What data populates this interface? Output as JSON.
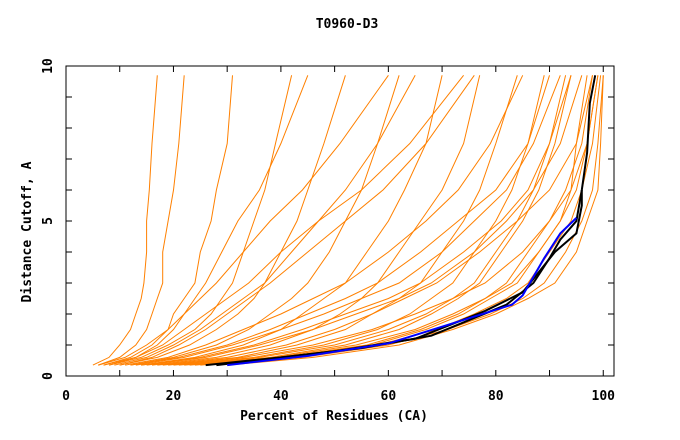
{
  "chart_data": {
    "type": "line",
    "title": "T0960-D3",
    "xlabel": "Percent of Residues (CA)",
    "ylabel": "Distance Cutoff, A",
    "xlim": [
      0,
      102
    ],
    "ylim": [
      0,
      10
    ],
    "xticks": [
      0,
      20,
      40,
      60,
      80,
      100
    ],
    "yticks": [
      0,
      5,
      10
    ],
    "xtick_labels": [
      "0",
      "20",
      "40",
      "60",
      "80",
      "100"
    ],
    "ytick_labels": [
      "0",
      "5",
      "10"
    ],
    "grid": false,
    "colors": {
      "other_models": "#ff8000",
      "highlight_black": "#000000",
      "highlight_blue": "#0000ff"
    },
    "orange_y_levels": [
      0.35,
      0.6,
      1,
      1.5,
      2,
      2.5,
      3,
      4,
      5,
      6,
      7.5,
      9.7
    ],
    "orange_series_x": [
      [
        5,
        8,
        10,
        12,
        13,
        14,
        14.5,
        15,
        15,
        15.5,
        16,
        17
      ],
      [
        6,
        10,
        13,
        15,
        16,
        17,
        18,
        18,
        19,
        20,
        21,
        22
      ],
      [
        7,
        12,
        16,
        19,
        20,
        22,
        24,
        25,
        27,
        28,
        30,
        31
      ],
      [
        8,
        14,
        19,
        24,
        27,
        29,
        31,
        33,
        35,
        37,
        39,
        42
      ],
      [
        10,
        17,
        23,
        28,
        32,
        35,
        37,
        40,
        43,
        45,
        48,
        52
      ],
      [
        12,
        20,
        28,
        34,
        38,
        42,
        45,
        49,
        52,
        55,
        58,
        62
      ],
      [
        14,
        24,
        33,
        40,
        44,
        48,
        52,
        56,
        60,
        63,
        67,
        70
      ],
      [
        16,
        28,
        38,
        46,
        51,
        55,
        58,
        62,
        66,
        70,
        74,
        77
      ],
      [
        18,
        32,
        43,
        52,
        57,
        62,
        66,
        70,
        74,
        77,
        80,
        84
      ],
      [
        20,
        35,
        48,
        58,
        64,
        68,
        72,
        76,
        80,
        83,
        86,
        89
      ],
      [
        22,
        38,
        52,
        62,
        68,
        73,
        77,
        81,
        85,
        88,
        91,
        94
      ],
      [
        24,
        40,
        56,
        66,
        73,
        78,
        82,
        86,
        90,
        93,
        96,
        98
      ],
      [
        26,
        42,
        58,
        69,
        76,
        82,
        86,
        90,
        94,
        96,
        98,
        99.5
      ],
      [
        28,
        44,
        60,
        71,
        79,
        85,
        89,
        93,
        96,
        98,
        99,
        100
      ],
      [
        30,
        46,
        62,
        72,
        80,
        86,
        91,
        95,
        97,
        99,
        99.5,
        100
      ],
      [
        9,
        15,
        20,
        25,
        29,
        33,
        37,
        42,
        47,
        52,
        58,
        65
      ],
      [
        11,
        19,
        26,
        33,
        40,
        46,
        52,
        60,
        67,
        73,
        79,
        85
      ],
      [
        13,
        22,
        31,
        40,
        48,
        55,
        62,
        70,
        76,
        82,
        87,
        92
      ],
      [
        15,
        26,
        36,
        46,
        54,
        62,
        68,
        76,
        82,
        87,
        92,
        96
      ],
      [
        6,
        11,
        15,
        19,
        22,
        25,
        28,
        33,
        38,
        44,
        51,
        60
      ],
      [
        7,
        13,
        18,
        22,
        26,
        30,
        34,
        40,
        47,
        55,
        64,
        74
      ],
      [
        19,
        33,
        46,
        57,
        65,
        72,
        78,
        85,
        90,
        94,
        97,
        99
      ],
      [
        23,
        39,
        54,
        65,
        72,
        78,
        83,
        88,
        92,
        95,
        97,
        99
      ],
      [
        17,
        30,
        41,
        50,
        57,
        63,
        69,
        77,
        84,
        90,
        95,
        98
      ],
      [
        8,
        13,
        17,
        20,
        22,
        24,
        26,
        29,
        32,
        36,
        40,
        45
      ],
      [
        10,
        16,
        21,
        26,
        30,
        34,
        38,
        45,
        52,
        59,
        67,
        76
      ],
      [
        21,
        36,
        50,
        60,
        67,
        72,
        76,
        80,
        84,
        87,
        90,
        93
      ],
      [
        25,
        41,
        57,
        67,
        74,
        79,
        84,
        88,
        92,
        94,
        95,
        97
      ],
      [
        12,
        21,
        30,
        38,
        45,
        52,
        58,
        66,
        73,
        80,
        86,
        90
      ],
      [
        14,
        25,
        35,
        44,
        52,
        60,
        66,
        74,
        81,
        86,
        90,
        94
      ]
    ],
    "highlight_series": [
      {
        "name": "black-1",
        "color": "#000000",
        "points": [
          [
            26,
            0.35
          ],
          [
            40,
            0.6
          ],
          [
            55,
            0.9
          ],
          [
            68,
            1.3
          ],
          [
            75,
            1.8
          ],
          [
            82,
            2.3
          ],
          [
            87,
            3
          ],
          [
            90,
            3.8
          ],
          [
            92,
            4.4
          ],
          [
            95,
            5
          ],
          [
            96,
            6
          ],
          [
            97,
            7.2
          ],
          [
            97.5,
            8.8
          ],
          [
            98.5,
            9.7
          ]
        ]
      },
      {
        "name": "black-2",
        "color": "#000000",
        "points": [
          [
            28,
            0.35
          ],
          [
            50,
            0.8
          ],
          [
            65,
            1.2
          ],
          [
            78,
            2.1
          ],
          [
            85,
            2.7
          ],
          [
            91,
            4.0
          ],
          [
            95,
            4.6
          ],
          [
            96,
            5.5
          ],
          [
            96,
            6.0
          ]
        ]
      },
      {
        "name": "blue",
        "color": "#0000ff",
        "points": [
          [
            30,
            0.35
          ],
          [
            45,
            0.65
          ],
          [
            60,
            1.05
          ],
          [
            72,
            1.7
          ],
          [
            83,
            2.3
          ],
          [
            85,
            2.6
          ],
          [
            89,
            3.8
          ],
          [
            92,
            4.6
          ],
          [
            95,
            5.1
          ]
        ]
      }
    ]
  }
}
